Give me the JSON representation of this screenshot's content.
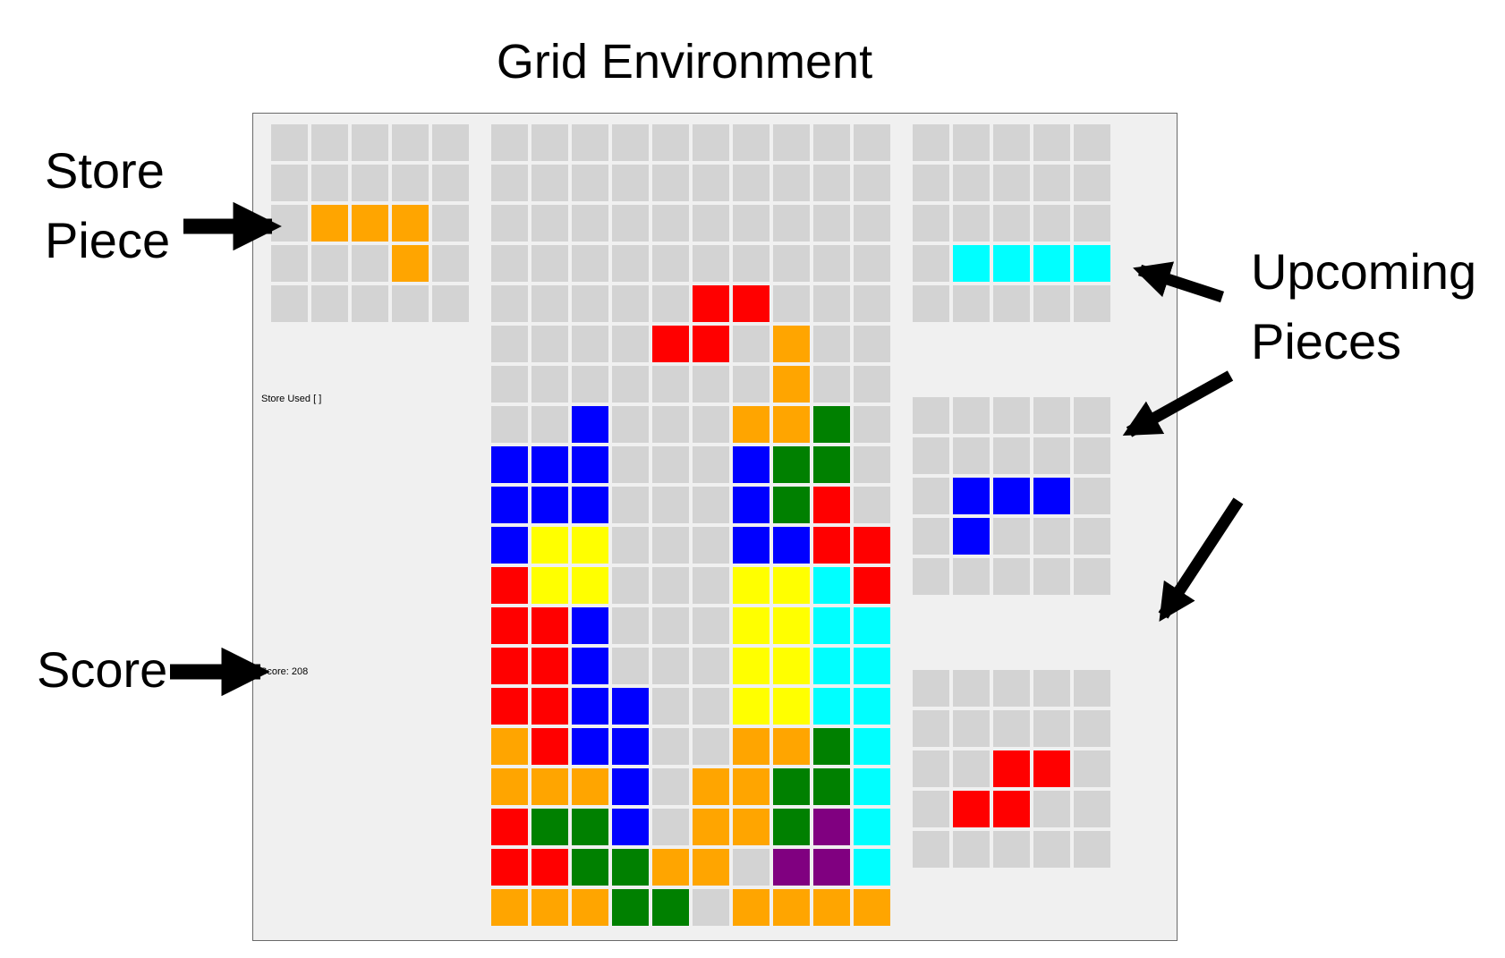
{
  "title": "Grid Environment",
  "annotations": {
    "store_piece": [
      "Store",
      "Piece"
    ],
    "score": "Score",
    "upcoming_pieces": [
      "Upcoming",
      "Pieces"
    ]
  },
  "status": {
    "store_used": "Store Used [ ]",
    "score": "Score: 208"
  },
  "colors": {
    "E": "#d3d3d3",
    "O": "#ffa500",
    "R": "#ff0000",
    "B": "#0000ff",
    "G": "#008000",
    "Y": "#ffff00",
    "C": "#00ffff",
    "P": "#800080"
  },
  "store_piece": [
    "EEEEE",
    "EEEEE",
    "EOOOE",
    "EEEOE",
    "EEEEE"
  ],
  "board": [
    "EEEEEEEEEE",
    "EEEEEEEEEE",
    "EEEEEEEEEE",
    "EEEEEEEEEE",
    "EEEEERREEE",
    "EEEERREOEE",
    "EEEEEEEOEE",
    "EEBEEEOOGE",
    "BBBEEEBGGE",
    "BBBEEEBGRE",
    "BYYEEEBBRR",
    "RYYEEEYYCR",
    "RRBEEEYYCC",
    "RRBEEEYYCC",
    "RRBBEEYYCC",
    "ORBBEEOOGC",
    "OOOBEOOGGC",
    "RGGBEOOGPC",
    "RRGGOOEPPC",
    "OOOGGEOOOO"
  ],
  "upcoming": [
    [
      "EEEEE",
      "EEEEE",
      "EEEEE",
      "ECCCC",
      "EEEEE"
    ],
    [
      "EEEEE",
      "EEEEE",
      "EBBBE",
      "EBEEE",
      "EEEEE"
    ],
    [
      "EEEEE",
      "EEEEE",
      "EERRE",
      "ERREE",
      "EEEEE"
    ]
  ]
}
